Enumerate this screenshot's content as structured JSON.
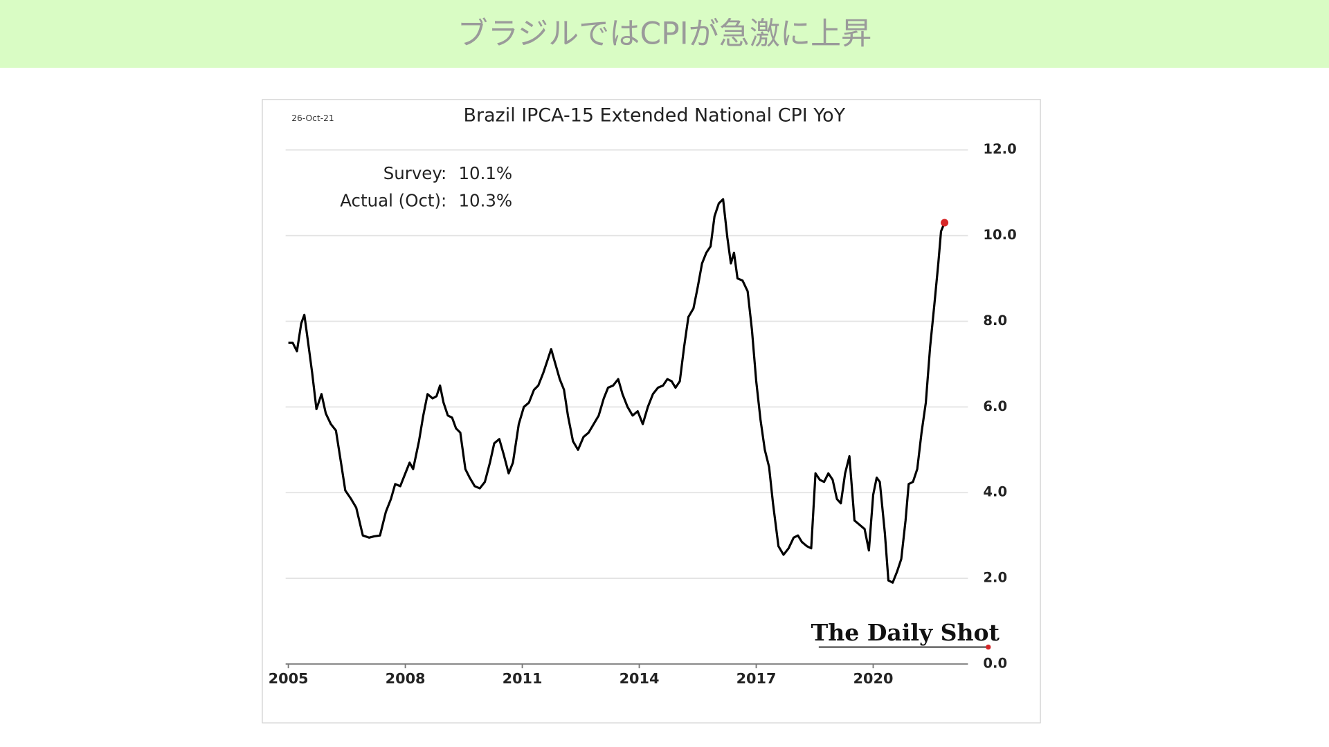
{
  "header": {
    "title": "ブラジルではCPIが急激に上昇"
  },
  "chart_data": {
    "type": "line",
    "title": "Brazil IPCA-15 Extended National CPI YoY",
    "date": "26-Oct-21",
    "annotations": [
      {
        "label": "Survey:",
        "value": "10.1%"
      },
      {
        "label": "Actual (Oct):",
        "value": "10.3%"
      }
    ],
    "source": "The Daily Shot",
    "color": "#000000",
    "last_point_color": "#d62728",
    "x": [
      2005.0,
      2005.11,
      2005.22,
      2005.33,
      2005.41,
      2005.5,
      2005.61,
      2005.72,
      2005.85,
      2005.96,
      2006.09,
      2006.22,
      2006.35,
      2006.46,
      2006.61,
      2006.74,
      2006.91,
      2007.07,
      2007.2,
      2007.35,
      2007.5,
      2007.63,
      2007.74,
      2007.87,
      2008.0,
      2008.11,
      2008.2,
      2008.35,
      2008.46,
      2008.57,
      2008.7,
      2008.8,
      2008.89,
      2008.98,
      2009.09,
      2009.2,
      2009.3,
      2009.41,
      2009.54,
      2009.65,
      2009.78,
      2009.91,
      2010.04,
      2010.17,
      2010.28,
      2010.41,
      2010.52,
      2010.65,
      2010.76,
      2010.91,
      2011.04,
      2011.17,
      2011.3,
      2011.41,
      2011.54,
      2011.65,
      2011.74,
      2011.85,
      2011.96,
      2012.07,
      2012.17,
      2012.3,
      2012.43,
      2012.57,
      2012.7,
      2012.83,
      2012.96,
      2013.09,
      2013.2,
      2013.33,
      2013.46,
      2013.57,
      2013.7,
      2013.83,
      2013.96,
      2014.09,
      2014.22,
      2014.35,
      2014.48,
      2014.61,
      2014.72,
      2014.83,
      2014.93,
      2015.04,
      2015.15,
      2015.26,
      2015.39,
      2015.5,
      2015.61,
      2015.72,
      2015.83,
      2015.93,
      2016.04,
      2016.15,
      2016.26,
      2016.35,
      2016.43,
      2016.52,
      2016.65,
      2016.78,
      2016.89,
      2017.0,
      2017.11,
      2017.22,
      2017.33,
      2017.43,
      2017.57,
      2017.7,
      2017.83,
      2017.96,
      2018.07,
      2018.17,
      2018.3,
      2018.41,
      2018.52,
      2018.63,
      2018.74,
      2018.85,
      2018.96,
      2019.07,
      2019.17,
      2019.28,
      2019.39,
      2019.52,
      2019.65,
      2019.78,
      2019.89,
      2020.0,
      2020.09,
      2020.17,
      2020.3,
      2020.39,
      2020.5,
      2020.61,
      2020.72,
      2020.83,
      2020.91,
      2021.02,
      2021.13,
      2021.24,
      2021.35,
      2021.46,
      2021.57,
      2021.67,
      2021.74,
      2021.83
    ],
    "values": [
      7.5,
      7.5,
      7.3,
      7.95,
      8.15,
      7.55,
      6.8,
      5.95,
      6.3,
      5.85,
      5.6,
      5.45,
      4.7,
      4.05,
      3.85,
      3.65,
      3.0,
      2.95,
      2.98,
      3.0,
      3.55,
      3.85,
      4.2,
      4.15,
      4.45,
      4.7,
      4.55,
      5.2,
      5.8,
      6.3,
      6.2,
      6.25,
      6.5,
      6.1,
      5.8,
      5.75,
      5.5,
      5.4,
      4.55,
      4.35,
      4.15,
      4.1,
      4.25,
      4.7,
      5.15,
      5.25,
      4.9,
      4.45,
      4.7,
      5.6,
      6.0,
      6.1,
      6.4,
      6.5,
      6.8,
      7.1,
      7.35,
      7.0,
      6.65,
      6.4,
      5.8,
      5.2,
      5.0,
      5.3,
      5.4,
      5.6,
      5.8,
      6.2,
      6.45,
      6.5,
      6.65,
      6.3,
      6.0,
      5.8,
      5.9,
      5.6,
      6.0,
      6.3,
      6.45,
      6.5,
      6.65,
      6.6,
      6.45,
      6.6,
      7.4,
      8.1,
      8.3,
      8.8,
      9.35,
      9.6,
      9.75,
      10.45,
      10.75,
      10.85,
      9.95,
      9.35,
      9.6,
      9.0,
      8.95,
      8.7,
      7.8,
      6.6,
      5.7,
      5.0,
      4.6,
      3.75,
      2.75,
      2.55,
      2.7,
      2.95,
      3.0,
      2.85,
      2.75,
      2.7,
      4.45,
      4.3,
      4.25,
      4.45,
      4.3,
      3.85,
      3.75,
      4.45,
      4.85,
      3.35,
      3.25,
      3.15,
      2.65,
      3.95,
      4.35,
      4.25,
      3.05,
      1.95,
      1.9,
      2.15,
      2.45,
      3.35,
      4.2,
      4.25,
      4.55,
      5.4,
      6.1,
      7.4,
      8.4,
      9.35,
      10.1,
      10.3
    ],
    "xlim": [
      2004.93,
      2022.43
    ],
    "xticks": [
      2005,
      2008,
      2011,
      2014,
      2017,
      2020
    ],
    "ylim": [
      0,
      12
    ],
    "yticks": [
      {
        "value": 0,
        "label": "0.0"
      },
      {
        "value": 2,
        "label": "2.0"
      },
      {
        "value": 4,
        "label": "4.0"
      },
      {
        "value": 6,
        "label": "6.0"
      },
      {
        "value": 8,
        "label": "8.0"
      },
      {
        "value": 10,
        "label": "10.0"
      },
      {
        "value": 12,
        "label": "12.0"
      }
    ],
    "grid": true
  }
}
